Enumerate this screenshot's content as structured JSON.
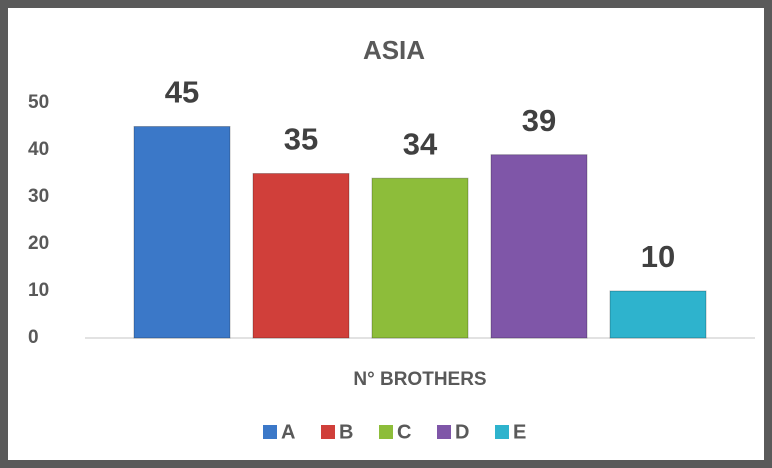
{
  "chart_data": {
    "type": "bar",
    "title": "ASIA",
    "categories": [
      "N° BROTHERS"
    ],
    "series": [
      {
        "name": "A",
        "color": "#3b78c8",
        "values": [
          45
        ]
      },
      {
        "name": "B",
        "color": "#d03f3a",
        "values": [
          35
        ]
      },
      {
        "name": "C",
        "color": "#8dbd3a",
        "values": [
          34
        ]
      },
      {
        "name": "D",
        "color": "#7f56a8",
        "values": [
          39
        ]
      },
      {
        "name": "E",
        "color": "#2eb3cd",
        "values": [
          10
        ]
      }
    ],
    "ylim": [
      0,
      50
    ],
    "yticks": [
      0,
      10,
      20,
      30,
      40,
      50
    ],
    "grid": false,
    "legend": "bottom"
  }
}
